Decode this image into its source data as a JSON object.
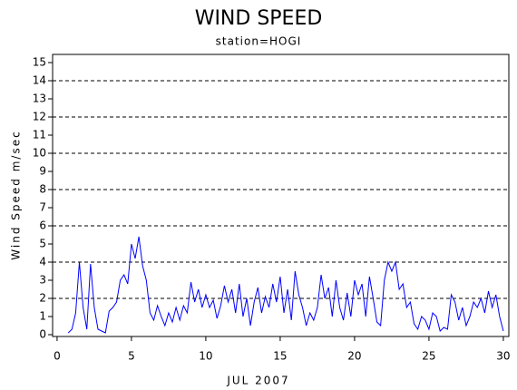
{
  "chart_data": {
    "type": "line",
    "title": "WIND SPEED",
    "subtitle": "station=HOGI",
    "x_label": "JUL 2007",
    "y_label": "Wind Speed m/sec",
    "xlim": [
      -0.3,
      30.37
    ],
    "xticks": [
      0,
      5,
      10,
      15,
      20,
      25,
      30
    ],
    "ylim": [
      -0.1,
      15.45
    ],
    "yticks": [
      0,
      1,
      2,
      3,
      4,
      5,
      6,
      7,
      8,
      9,
      10,
      11,
      12,
      13,
      14,
      15
    ],
    "grid_lines": [
      2,
      4,
      6,
      8,
      10,
      12,
      14
    ],
    "series": [
      {
        "color": "#0000ff",
        "x": [
          0.75,
          1,
          1.25,
          1.5,
          1.75,
          2,
          2.25,
          2.5,
          2.75,
          3,
          3.25,
          3.5,
          3.75,
          4,
          4.25,
          4.5,
          4.75,
          5,
          5.25,
          5.5,
          5.75,
          6,
          6.25,
          6.5,
          6.75,
          7,
          7.25,
          7.5,
          7.75,
          8,
          8.25,
          8.5,
          8.75,
          9,
          9.25,
          9.5,
          9.75,
          10,
          10.25,
          10.5,
          10.75,
          11,
          11.25,
          11.5,
          11.75,
          12,
          12.25,
          12.5,
          12.75,
          13,
          13.25,
          13.5,
          13.75,
          14,
          14.25,
          14.5,
          14.75,
          15,
          15.25,
          15.5,
          15.75,
          16,
          16.25,
          16.5,
          16.75,
          17,
          17.25,
          17.5,
          17.75,
          18,
          18.25,
          18.5,
          18.75,
          19,
          19.25,
          19.5,
          19.75,
          20,
          20.25,
          20.5,
          20.75,
          21,
          21.25,
          21.5,
          21.75,
          22,
          22.25,
          22.5,
          22.75,
          23,
          23.25,
          23.5,
          23.75,
          24,
          24.25,
          24.5,
          24.75,
          25,
          25.25,
          25.5,
          25.75,
          26,
          26.25,
          26.5,
          26.75,
          27,
          27.25,
          27.5,
          27.75,
          28,
          28.25,
          28.5,
          28.75,
          29,
          29.25,
          29.5,
          29.75,
          30
        ],
        "values": [
          0.1,
          0.3,
          1.2,
          4.0,
          1.5,
          0.3,
          3.9,
          1.5,
          0.3,
          0.2,
          0.1,
          1.3,
          1.5,
          1.8,
          3.0,
          3.3,
          2.8,
          5.0,
          4.2,
          5.4,
          3.8,
          3.0,
          1.2,
          0.8,
          1.6,
          1.0,
          0.5,
          1.2,
          0.7,
          1.5,
          0.8,
          1.6,
          1.2,
          2.9,
          1.8,
          2.5,
          1.5,
          2.2,
          1.5,
          1.9,
          0.9,
          1.6,
          2.7,
          1.8,
          2.5,
          1.2,
          2.8,
          1.0,
          2.0,
          0.5,
          1.8,
          2.6,
          1.2,
          2.1,
          1.5,
          2.8,
          1.8,
          3.2,
          1.2,
          2.5,
          0.8,
          3.5,
          2.2,
          1.5,
          0.5,
          1.2,
          0.8,
          1.5,
          3.3,
          2.0,
          2.6,
          1.0,
          3.0,
          1.5,
          0.8,
          2.3,
          1.0,
          3.0,
          2.2,
          2.8,
          1.0,
          3.2,
          2.0,
          0.7,
          0.5,
          3.0,
          4.0,
          3.5,
          4.0,
          2.5,
          2.8,
          1.5,
          1.8,
          0.6,
          0.3,
          1.0,
          0.8,
          0.3,
          1.2,
          1.0,
          0.2,
          0.4,
          0.3,
          2.2,
          1.8,
          0.8,
          1.5,
          0.5,
          1.0,
          1.8,
          1.5,
          2.0,
          1.2,
          2.4,
          1.5,
          2.2,
          1.0,
          0.2
        ]
      }
    ]
  }
}
